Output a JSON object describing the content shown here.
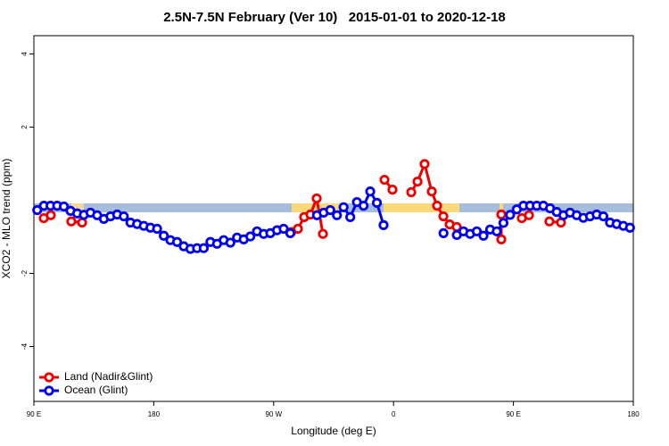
{
  "chart_data": {
    "type": "line",
    "title": "2.5N-7.5N February (Ver 10)   2015-01-01 to 2020-12-18",
    "x_label": "Longitude (deg E)",
    "y_label": "XCO2 - MLO trend (ppm)",
    "xlim": [
      90,
      540
    ],
    "xticks": [
      {
        "value": 90,
        "label": "90 E"
      },
      180,
      {
        "value": 270,
        "label": "90 W"
      },
      {
        "value": 360,
        "label": "0"
      },
      {
        "value": 450,
        "label": "90 E"
      },
      {
        "value": 540,
        "label": "180"
      }
    ],
    "ylim": [
      -5.5,
      4.5
    ],
    "yticks": [
      -4,
      -2,
      2,
      4
    ],
    "legend": "bottom-left",
    "series": [
      {
        "name": "Land (Nadir&Glint)",
        "color": "#ee0000",
        "x": [
          97.4,
          102.7,
          null,
          118.1,
          126.2,
          null,
          283.2,
          288.2,
          292.9,
          297.6,
          302.3,
          307,
          null,
          353.2,
          359.2,
          null,
          373.3,
          378,
          383.3,
          388.7,
          392.7,
          397.4,
          402.1,
          407.4,
          null,
          440.9,
          440.9,
          null,
          456.3,
          461.7,
          null,
          477,
          485.7
        ],
        "values": [
          -0.49,
          -0.41,
          null,
          -0.58,
          -0.61,
          null,
          -0.87,
          -0.78,
          -0.46,
          -0.39,
          0.05,
          -0.92,
          null,
          0.56,
          0.29,
          null,
          0.22,
          0.51,
          0.99,
          0.24,
          -0.15,
          -0.44,
          -0.66,
          -0.73,
          null,
          -1.07,
          -0.39,
          null,
          -0.49,
          -0.41,
          null,
          -0.58,
          -0.61
        ]
      },
      {
        "name": "Ocean (Glint)",
        "color": "#0000ee",
        "x": [
          92.5,
          97.5,
          102.5,
          107.5,
          112.5,
          117.5,
          122.5,
          127.5,
          132.5,
          137.5,
          142.5,
          147.5,
          152.5,
          157.5,
          162.5,
          167.5,
          172.5,
          177.5,
          182.5,
          187.5,
          192.5,
          197.5,
          202.5,
          207.5,
          212.5,
          217.5,
          222.5,
          227.5,
          232.5,
          237.5,
          242.5,
          247.5,
          252.5,
          257.5,
          262.5,
          267.5,
          272.5,
          277.5,
          282.5,
          287.5,
          292.5,
          297.5,
          302.5,
          307.5,
          312.5,
          317.5,
          322.5,
          327.5,
          332.5,
          337.5,
          342.5,
          347.5,
          352.5,
          357.5,
          362.5,
          367.5,
          372.5,
          377.5,
          382.5,
          387.5,
          392.5,
          397.5,
          402.5,
          407.5,
          412.5,
          417.5,
          422.5,
          427.5,
          432.5,
          437.5,
          442.5,
          447.5,
          452.5,
          457.5,
          462.5,
          467.5,
          472.5,
          477.5,
          482.5,
          487.5,
          492.5,
          497.5,
          502.5,
          507.5,
          512.5,
          517.5,
          522.5,
          527.5,
          532.5,
          537.5
        ],
        "values": [
          -0.27,
          -0.15,
          -0.15,
          -0.15,
          -0.17,
          -0.29,
          -0.36,
          -0.4,
          -0.34,
          -0.41,
          -0.51,
          -0.44,
          -0.39,
          -0.44,
          -0.61,
          -0.65,
          -0.7,
          -0.75,
          -0.78,
          -0.97,
          -1.09,
          -1.14,
          -1.26,
          -1.33,
          -1.31,
          -1.31,
          -1.14,
          -1.19,
          -1.09,
          -1.16,
          -1.02,
          -1.07,
          -0.99,
          -0.85,
          -0.92,
          -0.9,
          -0.82,
          -0.78,
          -0.9,
          null,
          null,
          null,
          -0.41,
          -0.34,
          -0.27,
          -0.41,
          -0.19,
          -0.46,
          -0.05,
          -0.15,
          0.24,
          -0.07,
          -0.68,
          null,
          null,
          null,
          null,
          null,
          null,
          null,
          null,
          -0.9,
          null,
          -0.95,
          -0.85,
          -0.92,
          -0.85,
          -0.97,
          -0.8,
          -0.85,
          -0.62,
          -0.4,
          -0.25,
          -0.15,
          -0.15,
          -0.15,
          -0.15,
          -0.22,
          -0.32,
          -0.41,
          -0.34,
          -0.41,
          -0.48,
          -0.44,
          -0.39,
          -0.44,
          -0.61,
          -0.65,
          -0.7,
          -0.75
        ]
      }
    ]
  }
}
